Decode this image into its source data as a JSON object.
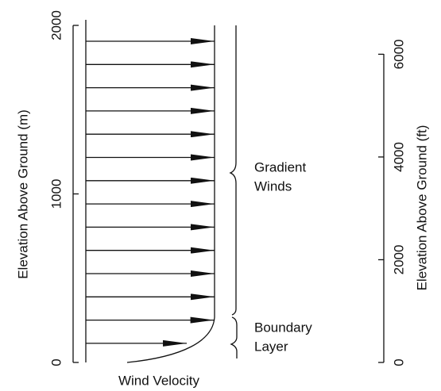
{
  "left_axis": {
    "label": "Elevation Above Ground (m)",
    "lim": [
      0,
      2000
    ],
    "ticks": [
      0,
      1000,
      2000
    ]
  },
  "right_axis": {
    "label": "Elevation Above Ground (ft)",
    "lim": [
      0,
      6562
    ],
    "ticks": [
      0,
      2000,
      4000,
      6000
    ]
  },
  "x_label": "Wind Velocity",
  "annotations": [
    "Gradient",
    "Winds",
    "Boundary",
    "Layer"
  ]
}
